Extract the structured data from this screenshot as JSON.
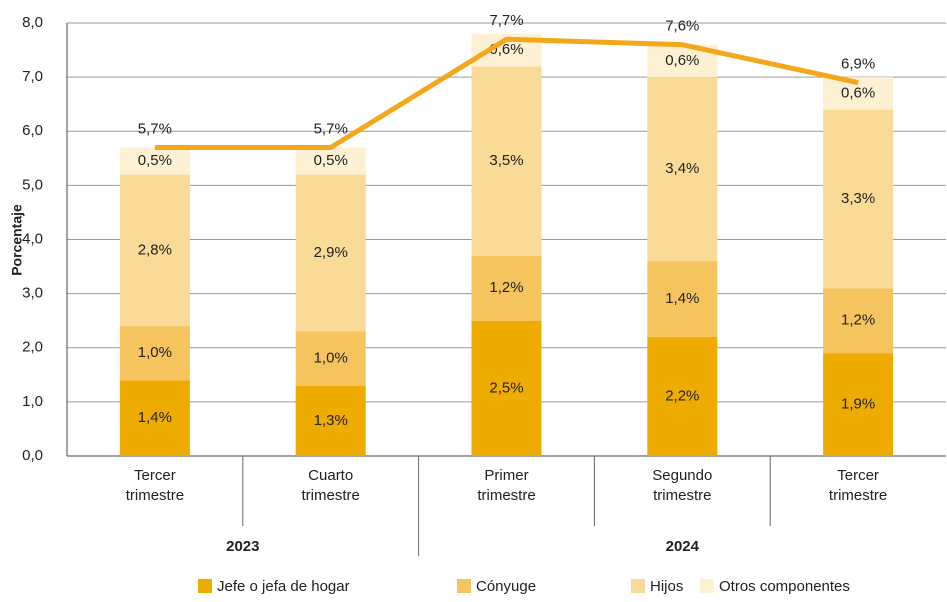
{
  "chart_data": {
    "type": "stacked_bar_line",
    "y_label": "Porcentaje",
    "categories": [
      "Tercer trimestre",
      "Cuarto trimestre",
      "Primer trimestre",
      "Segundo trimestre",
      "Tercer trimestre"
    ],
    "groups": [
      {
        "label": "2023",
        "span": [
          0,
          1
        ]
      },
      {
        "label": "2024",
        "span": [
          2,
          4
        ]
      }
    ],
    "series": [
      {
        "name": "Jefe o jefa de hogar",
        "color": "#eeab00",
        "values": [
          1.4,
          1.3,
          2.5,
          2.2,
          1.9
        ],
        "value_labels": [
          "1,4%",
          "1,3%",
          "2,5%",
          "2,2%",
          "1,9%"
        ]
      },
      {
        "name": "Cónyuge",
        "color": "#f5c45e",
        "values": [
          1.0,
          1.0,
          1.2,
          1.4,
          1.2
        ],
        "value_labels": [
          "1,0%",
          "1,0%",
          "1,2%",
          "1,4%",
          "1,2%"
        ]
      },
      {
        "name": "Hijos",
        "color": "#f9da96",
        "values": [
          2.8,
          2.9,
          3.5,
          3.4,
          3.3
        ],
        "value_labels": [
          "2,8%",
          "2,9%",
          "3,5%",
          "3,4%",
          "3,3%"
        ]
      },
      {
        "name": "Otros componentes",
        "color": "#fdf0d3",
        "values": [
          0.5,
          0.5,
          0.6,
          0.6,
          0.6
        ],
        "value_labels": [
          "0,5%",
          "0,5%",
          "0,6%",
          "0,6%",
          "0,6%"
        ]
      }
    ],
    "total": {
      "color": "#f5a71b",
      "values": [
        5.7,
        5.7,
        7.7,
        7.6,
        6.9
      ],
      "value_labels": [
        "5,7%",
        "5,7%",
        "7,7%",
        "7,6%",
        "6,9%"
      ]
    },
    "ylim": [
      0,
      8
    ],
    "yticks": [
      {
        "value": 0,
        "label": "0,0"
      },
      {
        "value": 1,
        "label": "1,0"
      },
      {
        "value": 2,
        "label": "2,0"
      },
      {
        "value": 3,
        "label": "3,0"
      },
      {
        "value": 4,
        "label": "4,0"
      },
      {
        "value": 5,
        "label": "5,0"
      },
      {
        "value": 6,
        "label": "6,0"
      },
      {
        "value": 7,
        "label": "7,0"
      },
      {
        "value": 8,
        "label": "8,0"
      }
    ],
    "grid": true
  }
}
